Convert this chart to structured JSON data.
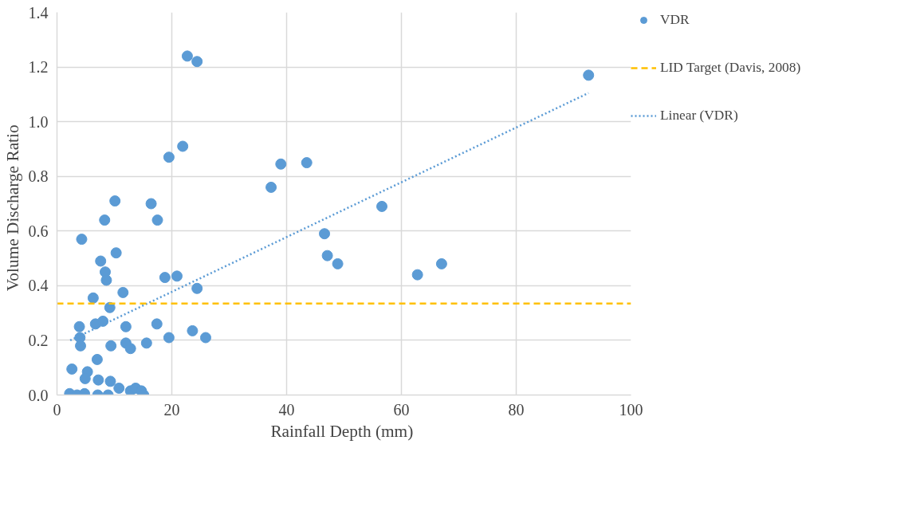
{
  "chart_data": {
    "type": "scatter",
    "xlabel": "Rainfall  Depth (mm)",
    "ylabel": "Volume  Discharge  Ratio",
    "xlim": [
      0,
      100
    ],
    "xticks": [
      0,
      20,
      40,
      60,
      80,
      100
    ],
    "ylim": [
      0,
      1.4
    ],
    "yticks": [
      {
        "value": 0,
        "label": "0.0"
      },
      {
        "value": 0.2,
        "label": "0.2"
      },
      {
        "value": 0.4,
        "label": "0.4"
      },
      {
        "value": 0.6,
        "label": "0.6"
      },
      {
        "value": 0.8,
        "label": "0.8"
      },
      {
        "value": 1.0,
        "label": "1.0"
      },
      {
        "value": 1.2,
        "label": "1.2"
      },
      {
        "value": 1.4,
        "label": "1.4"
      }
    ],
    "grid": true,
    "legend": "right",
    "marker": "circle",
    "series": [
      {
        "name": "VDR",
        "color": "#5b9bd5",
        "x": [
          22.7,
          24.4,
          92.6,
          21.9,
          19.5,
          39.0,
          43.5,
          37.3,
          10.1,
          16.4,
          56.6,
          8.3,
          17.5,
          46.6,
          4.3,
          10.3,
          47.1,
          48.9,
          67.0,
          62.8,
          7.6,
          8.4,
          8.6,
          18.8,
          20.9,
          24.4,
          11.5,
          6.3,
          9.2,
          3.9,
          6.7,
          8.0,
          12.0,
          17.4,
          4.0,
          4.1,
          9.4,
          12.0,
          12.8,
          15.6,
          19.5,
          23.6,
          25.9,
          2.6,
          5.3,
          7.0,
          4.9,
          7.2,
          9.3,
          10.8,
          2.2,
          3.5,
          4.8,
          7.1,
          8.9,
          12.8,
          13.7,
          14.7,
          15.1
        ],
        "values": [
          1.24,
          1.22,
          1.17,
          0.91,
          0.87,
          0.845,
          0.85,
          0.76,
          0.71,
          0.7,
          0.69,
          0.64,
          0.64,
          0.59,
          0.57,
          0.52,
          0.51,
          0.48,
          0.48,
          0.44,
          0.49,
          0.45,
          0.42,
          0.43,
          0.435,
          0.39,
          0.375,
          0.355,
          0.32,
          0.25,
          0.26,
          0.27,
          0.25,
          0.26,
          0.21,
          0.18,
          0.18,
          0.19,
          0.17,
          0.19,
          0.21,
          0.235,
          0.21,
          0.095,
          0.085,
          0.13,
          0.06,
          0.055,
          0.05,
          0.025,
          0.005,
          0.0,
          0.005,
          0.0,
          0.0,
          0.015,
          0.025,
          0.015,
          0.0
        ]
      },
      {
        "name": "Linear (VDR)",
        "type": "line",
        "marker": "none",
        "line_style": "dotted",
        "color": "#5b9bd5",
        "x": [
          2.3,
          92.6
        ],
        "values": [
          0.2,
          1.105
        ]
      }
    ],
    "ref_lines": [
      {
        "axis": "y",
        "value": 0.335,
        "label": "LID Target (Davis, 2008)",
        "color": "#ffc000",
        "line_style": "dashed"
      }
    ]
  }
}
